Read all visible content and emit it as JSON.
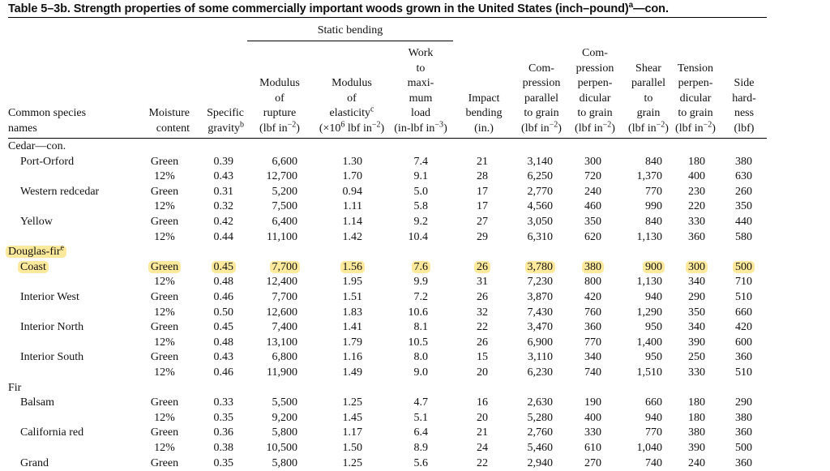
{
  "title": "Table 5–3b. Strength properties of some commercially important woods grown in the United States (inch–pound)",
  "title_sup": "a",
  "title_suffix": "—con.",
  "static_bending": "Static bending",
  "headers": {
    "species": [
      "Common species",
      "names"
    ],
    "moisture": [
      "Moisture",
      "content"
    ],
    "specific_gravity": [
      "Specific",
      "gravity"
    ],
    "specific_gravity_sup": "b",
    "mor": [
      "Modulus",
      "of",
      "rupture",
      "(lbf in",
      "−2",
      ")"
    ],
    "moe": [
      "Modulus",
      "of",
      "elasticity",
      "c",
      "(×10",
      "6",
      " lbf in",
      "−2",
      ")"
    ],
    "work": [
      "Work",
      "to",
      "maxi-",
      "mum",
      "load",
      "(in-lbf in",
      "−3",
      ")"
    ],
    "impact": [
      "Impact",
      "bending",
      "(in.)"
    ],
    "comp_par": [
      "Com-",
      "pression",
      "parallel",
      "to grain",
      "(lbf in",
      "−2",
      ")"
    ],
    "comp_perp": [
      "Com-",
      "pression",
      "perpen-",
      "dicular",
      "to grain",
      "(lbf in",
      "−2",
      ")"
    ],
    "shear": [
      "Shear",
      "parallel",
      "to",
      "grain",
      "(lbf in",
      "−2",
      ")"
    ],
    "tension": [
      "Tension",
      "perpen-",
      "dicular",
      "to grain",
      "(lbf in",
      "−2",
      ")"
    ],
    "hardness": [
      "Side",
      "hard-",
      "ness",
      "(lbf)"
    ]
  },
  "groups": [
    {
      "name": "Cedar—con.",
      "sup": "",
      "highlighted": false,
      "species": [
        {
          "name": "Port-Orford",
          "rows": [
            [
              "Green",
              "0.39",
              "6,600",
              "1.30",
              "7.4",
              "21",
              "3,140",
              "300",
              "840",
              "180",
              "380"
            ],
            [
              "12%",
              "0.43",
              "12,700",
              "1.70",
              "9.1",
              "28",
              "6,250",
              "720",
              "1,370",
              "400",
              "630"
            ]
          ]
        },
        {
          "name": "Western redcedar",
          "rows": [
            [
              "Green",
              "0.31",
              "5,200",
              "0.94",
              "5.0",
              "17",
              "2,770",
              "240",
              "770",
              "230",
              "260"
            ],
            [
              "12%",
              "0.32",
              "7,500",
              "1.11",
              "5.8",
              "17",
              "4,560",
              "460",
              "990",
              "220",
              "350"
            ]
          ]
        },
        {
          "name": "Yellow",
          "rows": [
            [
              "Green",
              "0.42",
              "6,400",
              "1.14",
              "9.2",
              "27",
              "3,050",
              "350",
              "840",
              "330",
              "440"
            ],
            [
              "12%",
              "0.44",
              "11,100",
              "1.42",
              "10.4",
              "29",
              "6,310",
              "620",
              "1,130",
              "360",
              "580"
            ]
          ]
        }
      ]
    },
    {
      "name": "Douglas-fir",
      "sup": "e",
      "highlighted": true,
      "species": [
        {
          "name": "Coast",
          "highlighted": true,
          "rows": [
            [
              "Green",
              "0.45",
              "7,700",
              "1.56",
              "7.6",
              "26",
              "3,780",
              "380",
              "900",
              "300",
              "500"
            ],
            [
              "12%",
              "0.48",
              "12,400",
              "1.95",
              "9.9",
              "31",
              "7,230",
              "800",
              "1,130",
              "340",
              "710"
            ]
          ]
        },
        {
          "name": "Interior West",
          "rows": [
            [
              "Green",
              "0.46",
              "7,700",
              "1.51",
              "7.2",
              "26",
              "3,870",
              "420",
              "940",
              "290",
              "510"
            ],
            [
              "12%",
              "0.50",
              "12,600",
              "1.83",
              "10.6",
              "32",
              "7,430",
              "760",
              "1,290",
              "350",
              "660"
            ]
          ]
        },
        {
          "name": "Interior North",
          "rows": [
            [
              "Green",
              "0.45",
              "7,400",
              "1.41",
              "8.1",
              "22",
              "3,470",
              "360",
              "950",
              "340",
              "420"
            ],
            [
              "12%",
              "0.48",
              "13,100",
              "1.79",
              "10.5",
              "26",
              "6,900",
              "770",
              "1,400",
              "390",
              "600"
            ]
          ]
        },
        {
          "name": "Interior South",
          "rows": [
            [
              "Green",
              "0.43",
              "6,800",
              "1.16",
              "8.0",
              "15",
              "3,110",
              "340",
              "950",
              "250",
              "360"
            ],
            [
              "12%",
              "0.46",
              "11,900",
              "1.49",
              "9.0",
              "20",
              "6,230",
              "740",
              "1,510",
              "330",
              "510"
            ]
          ]
        }
      ]
    },
    {
      "name": "Fir",
      "sup": "",
      "highlighted": false,
      "species": [
        {
          "name": "Balsam",
          "rows": [
            [
              "Green",
              "0.33",
              "5,500",
              "1.25",
              "4.7",
              "16",
              "2,630",
              "190",
              "660",
              "180",
              "290"
            ],
            [
              "12%",
              "0.35",
              "9,200",
              "1.45",
              "5.1",
              "20",
              "5,280",
              "400",
              "940",
              "180",
              "380"
            ]
          ]
        },
        {
          "name": "California red",
          "rows": [
            [
              "Green",
              "0.36",
              "5,800",
              "1.17",
              "6.4",
              "21",
              "2,760",
              "330",
              "770",
              "380",
              "360"
            ],
            [
              "12%",
              "0.38",
              "10,500",
              "1.50",
              "8.9",
              "24",
              "5,460",
              "610",
              "1,040",
              "390",
              "500"
            ]
          ]
        },
        {
          "name": "Grand",
          "rows": [
            [
              "Green",
              "0.35",
              "5,800",
              "1.25",
              "5.6",
              "22",
              "2,940",
              "270",
              "740",
              "240",
              "360"
            ]
          ]
        }
      ]
    }
  ]
}
